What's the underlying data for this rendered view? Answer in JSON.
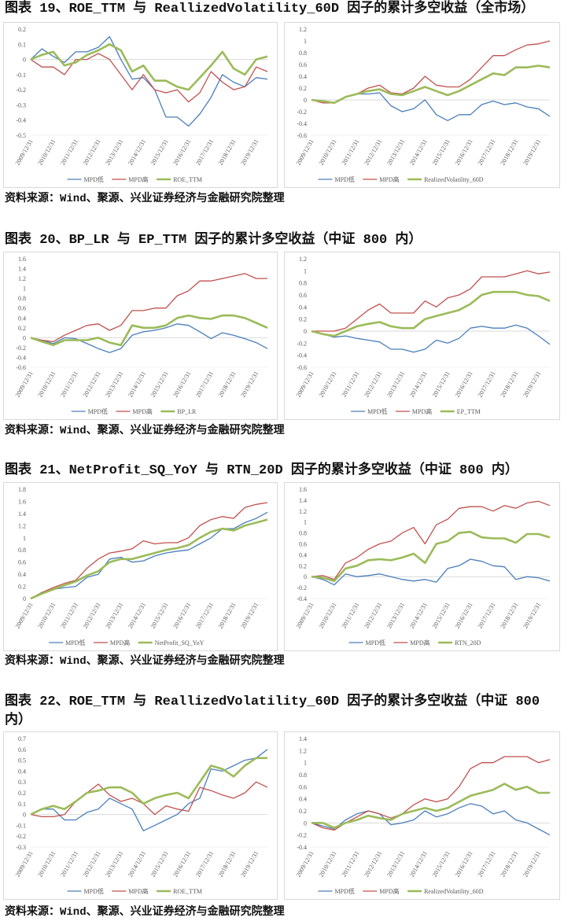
{
  "figures": [
    {
      "title": "图表 19、ROE_TTM 与 ReallizedVolatility_60D 因子的累计多空收益（全市场）",
      "source": "资料来源：Wind、聚源、兴业证券经济与金融研究院整理"
    },
    {
      "title": "图表 20、BP_LR 与 EP_TTM 因子的累计多空收益（中证 800 内）",
      "source": "资料来源：Wind、聚源、兴业证券经济与金融研究院整理"
    },
    {
      "title": "图表 21、NetProfit_SQ_YoY 与 RTN_20D 因子的累计多空收益（中证 800 内）",
      "source": "资料来源：Wind、聚源、兴业证券经济与金融研究院整理"
    },
    {
      "title": "图表 22、ROE_TTM 与 ReallizedVolatility_60D 因子的累计多空收益（中证 800 内）",
      "source": "资料来源：Wind、聚源、兴业证券经济与金融研究院整理"
    }
  ],
  "colors": {
    "MPD低": "#4a7ebb",
    "MPD高": "#c0504d",
    "factor": "#9bbb59"
  },
  "chart_data": [
    {
      "type": "line",
      "x_ticks": [
        "2009/12/31",
        "2010/12/31",
        "2011/12/31",
        "2012/12/31",
        "2013/12/31",
        "2014/12/31",
        "2015/12/31",
        "2016/12/31",
        "2017/12/31",
        "2018/12/31",
        "2019/12/31"
      ],
      "ylim": [
        -0.5,
        0.2
      ],
      "yticks": [
        "-0.5",
        "-0.4",
        "-0.3",
        "-0.2",
        "-0.1",
        "0",
        "0.1",
        "0.2"
      ],
      "legend": "bottom",
      "grid": false,
      "series": [
        {
          "name": "MPD低",
          "values": [
            0,
            0.07,
            0.02,
            -0.02,
            0.05,
            0.05,
            0.08,
            0.15,
            0,
            -0.13,
            -0.12,
            -0.2,
            -0.38,
            -0.38,
            -0.44,
            -0.36,
            -0.25,
            -0.1,
            -0.15,
            -0.18,
            -0.12,
            -0.13
          ]
        },
        {
          "name": "MPD高",
          "values": [
            0,
            -0.05,
            -0.05,
            -0.1,
            0,
            0,
            0.04,
            0,
            -0.1,
            -0.2,
            -0.1,
            -0.2,
            -0.22,
            -0.2,
            -0.28,
            -0.22,
            -0.08,
            -0.15,
            -0.2,
            -0.18,
            -0.05,
            -0.08
          ]
        },
        {
          "name": "ROE_TTM",
          "values": [
            0,
            0.03,
            0.05,
            -0.04,
            -0.02,
            0.03,
            0.06,
            0.1,
            0.06,
            -0.08,
            -0.04,
            -0.14,
            -0.14,
            -0.18,
            -0.2,
            -0.12,
            -0.04,
            0.05,
            -0.06,
            -0.1,
            0,
            0.02
          ]
        }
      ]
    },
    {
      "type": "line",
      "x_ticks": [
        "2009/12/31",
        "2010/12/31",
        "2011/12/31",
        "2012/12/31",
        "2013/12/31",
        "2014/12/31",
        "2015/12/31",
        "2016/12/31",
        "2017/12/31",
        "2018/12/31",
        "2019/12/31"
      ],
      "ylim": [
        -0.6,
        1.2
      ],
      "yticks": [
        "-0.6",
        "-0.4",
        "-0.2",
        "0",
        "0.2",
        "0.4",
        "0.6",
        "0.8",
        "1",
        "1.2"
      ],
      "legend": "bottom",
      "grid": false,
      "series": [
        {
          "name": "MPD低",
          "values": [
            0,
            -0.02,
            -0.05,
            0.05,
            0.1,
            0.1,
            0.12,
            -0.1,
            -0.2,
            -0.15,
            0,
            -0.25,
            -0.35,
            -0.25,
            -0.25,
            -0.08,
            -0.02,
            -0.08,
            -0.05,
            -0.12,
            -0.15,
            -0.28
          ]
        },
        {
          "name": "MPD高",
          "values": [
            0,
            -0.05,
            -0.05,
            0.05,
            0.1,
            0.2,
            0.25,
            0.12,
            0.1,
            0.2,
            0.4,
            0.25,
            0.22,
            0.22,
            0.35,
            0.55,
            0.75,
            0.75,
            0.85,
            0.93,
            0.95,
            1.0
          ]
        },
        {
          "name": "RealizedVolatility_60D",
          "values": [
            0,
            -0.02,
            -0.05,
            0.05,
            0.1,
            0.15,
            0.18,
            0.1,
            0.08,
            0.15,
            0.22,
            0.15,
            0.08,
            0.15,
            0.25,
            0.35,
            0.45,
            0.42,
            0.55,
            0.55,
            0.58,
            0.55
          ]
        }
      ]
    },
    {
      "type": "line",
      "x_ticks": [
        "2009/12/31",
        "2010/12/31",
        "2011/12/31",
        "2012/12/31",
        "2013/12/31",
        "2014/12/31",
        "2015/12/31",
        "2016/12/31",
        "2017/12/31",
        "2018/12/31",
        "2019/12/31"
      ],
      "ylim": [
        -0.6,
        1.6
      ],
      "yticks": [
        "-0.6",
        "-0.4",
        "-0.2",
        "0",
        "0.2",
        "0.4",
        "0.6",
        "0.8",
        "1",
        "1.2",
        "1.4",
        "1.6"
      ],
      "legend": "bottom",
      "grid": false,
      "series": [
        {
          "name": "MPD低",
          "values": [
            0,
            -0.05,
            -0.12,
            0,
            -0.02,
            -0.12,
            -0.22,
            -0.3,
            -0.22,
            0.05,
            0.12,
            0.15,
            0.2,
            0.28,
            0.25,
            0.12,
            -0.02,
            0.1,
            0.05,
            -0.02,
            -0.1,
            -0.22
          ]
        },
        {
          "name": "MPD高",
          "values": [
            0,
            -0.05,
            -0.08,
            0.05,
            0.15,
            0.25,
            0.28,
            0.15,
            0.25,
            0.55,
            0.55,
            0.6,
            0.6,
            0.85,
            0.95,
            1.15,
            1.15,
            1.2,
            1.25,
            1.3,
            1.2,
            1.2
          ]
        },
        {
          "name": "BP_LR",
          "values": [
            0,
            -0.08,
            -0.15,
            -0.05,
            -0.05,
            -0.05,
            0,
            -0.1,
            -0.15,
            0.25,
            0.2,
            0.2,
            0.25,
            0.4,
            0.45,
            0.4,
            0.38,
            0.45,
            0.45,
            0.4,
            0.3,
            0.2
          ]
        }
      ]
    },
    {
      "type": "line",
      "x_ticks": [
        "2009/12/31",
        "2010/12/31",
        "2011/12/31",
        "2012/12/31",
        "2013/12/31",
        "2014/12/31",
        "2015/12/31",
        "2016/12/31",
        "2017/12/31",
        "2018/12/31",
        "2019/12/31"
      ],
      "ylim": [
        -0.6,
        1.2
      ],
      "yticks": [
        "-0.6",
        "-0.4",
        "-0.2",
        "0",
        "0.2",
        "0.4",
        "0.6",
        "0.8",
        "1",
        "1.2"
      ],
      "legend": "bottom",
      "grid": false,
      "series": [
        {
          "name": "MPD低",
          "values": [
            0,
            -0.05,
            -0.1,
            -0.08,
            -0.12,
            -0.15,
            -0.18,
            -0.3,
            -0.3,
            -0.35,
            -0.3,
            -0.15,
            -0.2,
            -0.12,
            0.05,
            0.08,
            0.05,
            0.05,
            0.1,
            0.05,
            -0.08,
            -0.22
          ]
        },
        {
          "name": "MPD高",
          "values": [
            0,
            0,
            0,
            0.05,
            0.2,
            0.35,
            0.45,
            0.3,
            0.3,
            0.3,
            0.5,
            0.4,
            0.55,
            0.6,
            0.7,
            0.9,
            0.9,
            0.9,
            0.95,
            1.0,
            0.95,
            0.98
          ]
        },
        {
          "name": "EP_TTM",
          "values": [
            0,
            -0.05,
            -0.08,
            0,
            0.08,
            0.12,
            0.15,
            0.08,
            0.05,
            0.05,
            0.2,
            0.25,
            0.3,
            0.35,
            0.45,
            0.6,
            0.65,
            0.65,
            0.65,
            0.6,
            0.58,
            0.5
          ]
        }
      ]
    },
    {
      "type": "line",
      "x_ticks": [
        "2009/12/31",
        "2010/12/31",
        "2011/12/31",
        "2012/12/31",
        "2013/12/31",
        "2014/12/31",
        "2015/12/31",
        "2016/12/31",
        "2017/12/31",
        "2018/12/31",
        "2019/12/31"
      ],
      "ylim": [
        0,
        1.8
      ],
      "yticks": [
        "0",
        "0.2",
        "0.4",
        "0.6",
        "0.8",
        "1",
        "1.2",
        "1.4",
        "1.6",
        "1.8"
      ],
      "legend": "bottom",
      "grid": false,
      "series": [
        {
          "name": "MPD低",
          "values": [
            0,
            0.1,
            0.15,
            0.18,
            0.2,
            0.35,
            0.4,
            0.65,
            0.68,
            0.6,
            0.62,
            0.7,
            0.75,
            0.78,
            0.8,
            0.9,
            1.0,
            1.15,
            1.15,
            1.25,
            1.32,
            1.42
          ]
        },
        {
          "name": "MPD高",
          "values": [
            0,
            0.1,
            0.18,
            0.25,
            0.3,
            0.5,
            0.65,
            0.75,
            0.78,
            0.82,
            0.95,
            0.9,
            0.92,
            0.92,
            1.0,
            1.2,
            1.3,
            1.35,
            1.32,
            1.5,
            1.55,
            1.58
          ]
        },
        {
          "name": "NetProfit_SQ_YoY",
          "values": [
            0,
            0.08,
            0.15,
            0.22,
            0.28,
            0.38,
            0.45,
            0.6,
            0.65,
            0.65,
            0.7,
            0.75,
            0.8,
            0.83,
            0.88,
            1.0,
            1.1,
            1.15,
            1.12,
            1.2,
            1.25,
            1.3
          ]
        }
      ]
    },
    {
      "type": "line",
      "x_ticks": [
        "2009/12/31",
        "2010/12/31",
        "2011/12/31",
        "2012/12/31",
        "2013/12/31",
        "2014/12/31",
        "2015/12/31",
        "2016/12/31",
        "2017/12/31",
        "2018/12/31",
        "2019/12/31"
      ],
      "ylim": [
        -0.4,
        1.6
      ],
      "yticks": [
        "-0.4",
        "-0.2",
        "0",
        "0.2",
        "0.4",
        "0.6",
        "0.8",
        "1",
        "1.2",
        "1.4",
        "1.6"
      ],
      "legend": "bottom",
      "grid": false,
      "series": [
        {
          "name": "MPD低",
          "values": [
            0,
            -0.05,
            -0.15,
            0.05,
            0,
            0.02,
            0.05,
            0,
            -0.05,
            -0.08,
            -0.05,
            -0.1,
            0.15,
            0.2,
            0.32,
            0.28,
            0.2,
            0.18,
            -0.05,
            0,
            -0.02,
            -0.08
          ]
        },
        {
          "name": "MPD高",
          "values": [
            0,
            0.02,
            -0.05,
            0.25,
            0.35,
            0.5,
            0.6,
            0.65,
            0.8,
            0.9,
            0.6,
            0.95,
            1.05,
            1.25,
            1.28,
            1.28,
            1.2,
            1.3,
            1.25,
            1.35,
            1.38,
            1.3
          ]
        },
        {
          "name": "RTN_20D",
          "values": [
            0,
            -0.02,
            -0.08,
            0.15,
            0.2,
            0.3,
            0.32,
            0.3,
            0.35,
            0.42,
            0.25,
            0.6,
            0.65,
            0.8,
            0.82,
            0.72,
            0.7,
            0.7,
            0.62,
            0.78,
            0.78,
            0.72
          ]
        }
      ]
    },
    {
      "type": "line",
      "x_ticks": [
        "2009/12/31",
        "2010/12/31",
        "2011/12/31",
        "2012/12/31",
        "2013/12/31",
        "2014/12/31",
        "2015/12/31",
        "2016/12/31",
        "2017/12/31",
        "2018/12/31",
        "2019/12/31"
      ],
      "ylim": [
        -0.3,
        0.7
      ],
      "yticks": [
        "-0.3",
        "-0.2",
        "-0.1",
        "0",
        "0.1",
        "0.2",
        "0.3",
        "0.4",
        "0.5",
        "0.6",
        "0.7"
      ],
      "legend": "bottom",
      "grid": false,
      "series": [
        {
          "name": "MPD低",
          "values": [
            0,
            0.05,
            0.05,
            -0.05,
            -0.05,
            0.02,
            0.05,
            0.15,
            0.1,
            0.05,
            -0.15,
            -0.1,
            -0.05,
            0,
            0.1,
            0.15,
            0.42,
            0.4,
            0.45,
            0.5,
            0.52,
            0.6
          ]
        },
        {
          "name": "MPD高",
          "values": [
            0,
            -0.02,
            -0.02,
            0,
            0.12,
            0.2,
            0.28,
            0.18,
            0.12,
            0.15,
            0.1,
            0,
            0.08,
            0.05,
            0.03,
            0.25,
            0.22,
            0.18,
            0.15,
            0.2,
            0.3,
            0.25
          ]
        },
        {
          "name": "ROE_TTM",
          "values": [
            0,
            0.05,
            0.08,
            0.05,
            0.12,
            0.2,
            0.22,
            0.25,
            0.25,
            0.2,
            0.1,
            0.15,
            0.18,
            0.2,
            0.15,
            0.3,
            0.45,
            0.42,
            0.35,
            0.45,
            0.52,
            0.52
          ]
        }
      ]
    },
    {
      "type": "line",
      "x_ticks": [
        "2009/12/31",
        "2010/12/31",
        "2011/12/31",
        "2012/12/31",
        "2013/12/31",
        "2014/12/31",
        "2015/12/31",
        "2016/12/31",
        "2017/12/31",
        "2018/12/31",
        "2019/12/31"
      ],
      "ylim": [
        -0.4,
        1.4
      ],
      "yticks": [
        "-0.4",
        "-0.2",
        "0",
        "0.2",
        "0.4",
        "0.6",
        "0.8",
        "1",
        "1.2",
        "1.4"
      ],
      "legend": "bottom",
      "grid": false,
      "series": [
        {
          "name": "MPD低",
          "values": [
            0,
            -0.05,
            -0.1,
            0.05,
            0.15,
            0.2,
            0.15,
            -0.03,
            0,
            0.05,
            0.2,
            0.1,
            0.15,
            0.25,
            0.32,
            0.28,
            0.15,
            0.2,
            0.05,
            0,
            -0.1,
            -0.2
          ]
        },
        {
          "name": "MPD高",
          "values": [
            0,
            -0.08,
            -0.12,
            0,
            0.1,
            0.2,
            0.15,
            0.08,
            0.15,
            0.3,
            0.4,
            0.35,
            0.4,
            0.6,
            0.9,
            1.0,
            1.0,
            1.1,
            1.1,
            1.1,
            1.0,
            1.05
          ]
        },
        {
          "name": "RealizedVolatility_60D",
          "values": [
            0,
            0,
            -0.08,
            0,
            0.05,
            0.12,
            0.08,
            0.05,
            0.15,
            0.2,
            0.25,
            0.2,
            0.25,
            0.35,
            0.45,
            0.5,
            0.55,
            0.65,
            0.55,
            0.6,
            0.5,
            0.5
          ]
        }
      ]
    }
  ]
}
